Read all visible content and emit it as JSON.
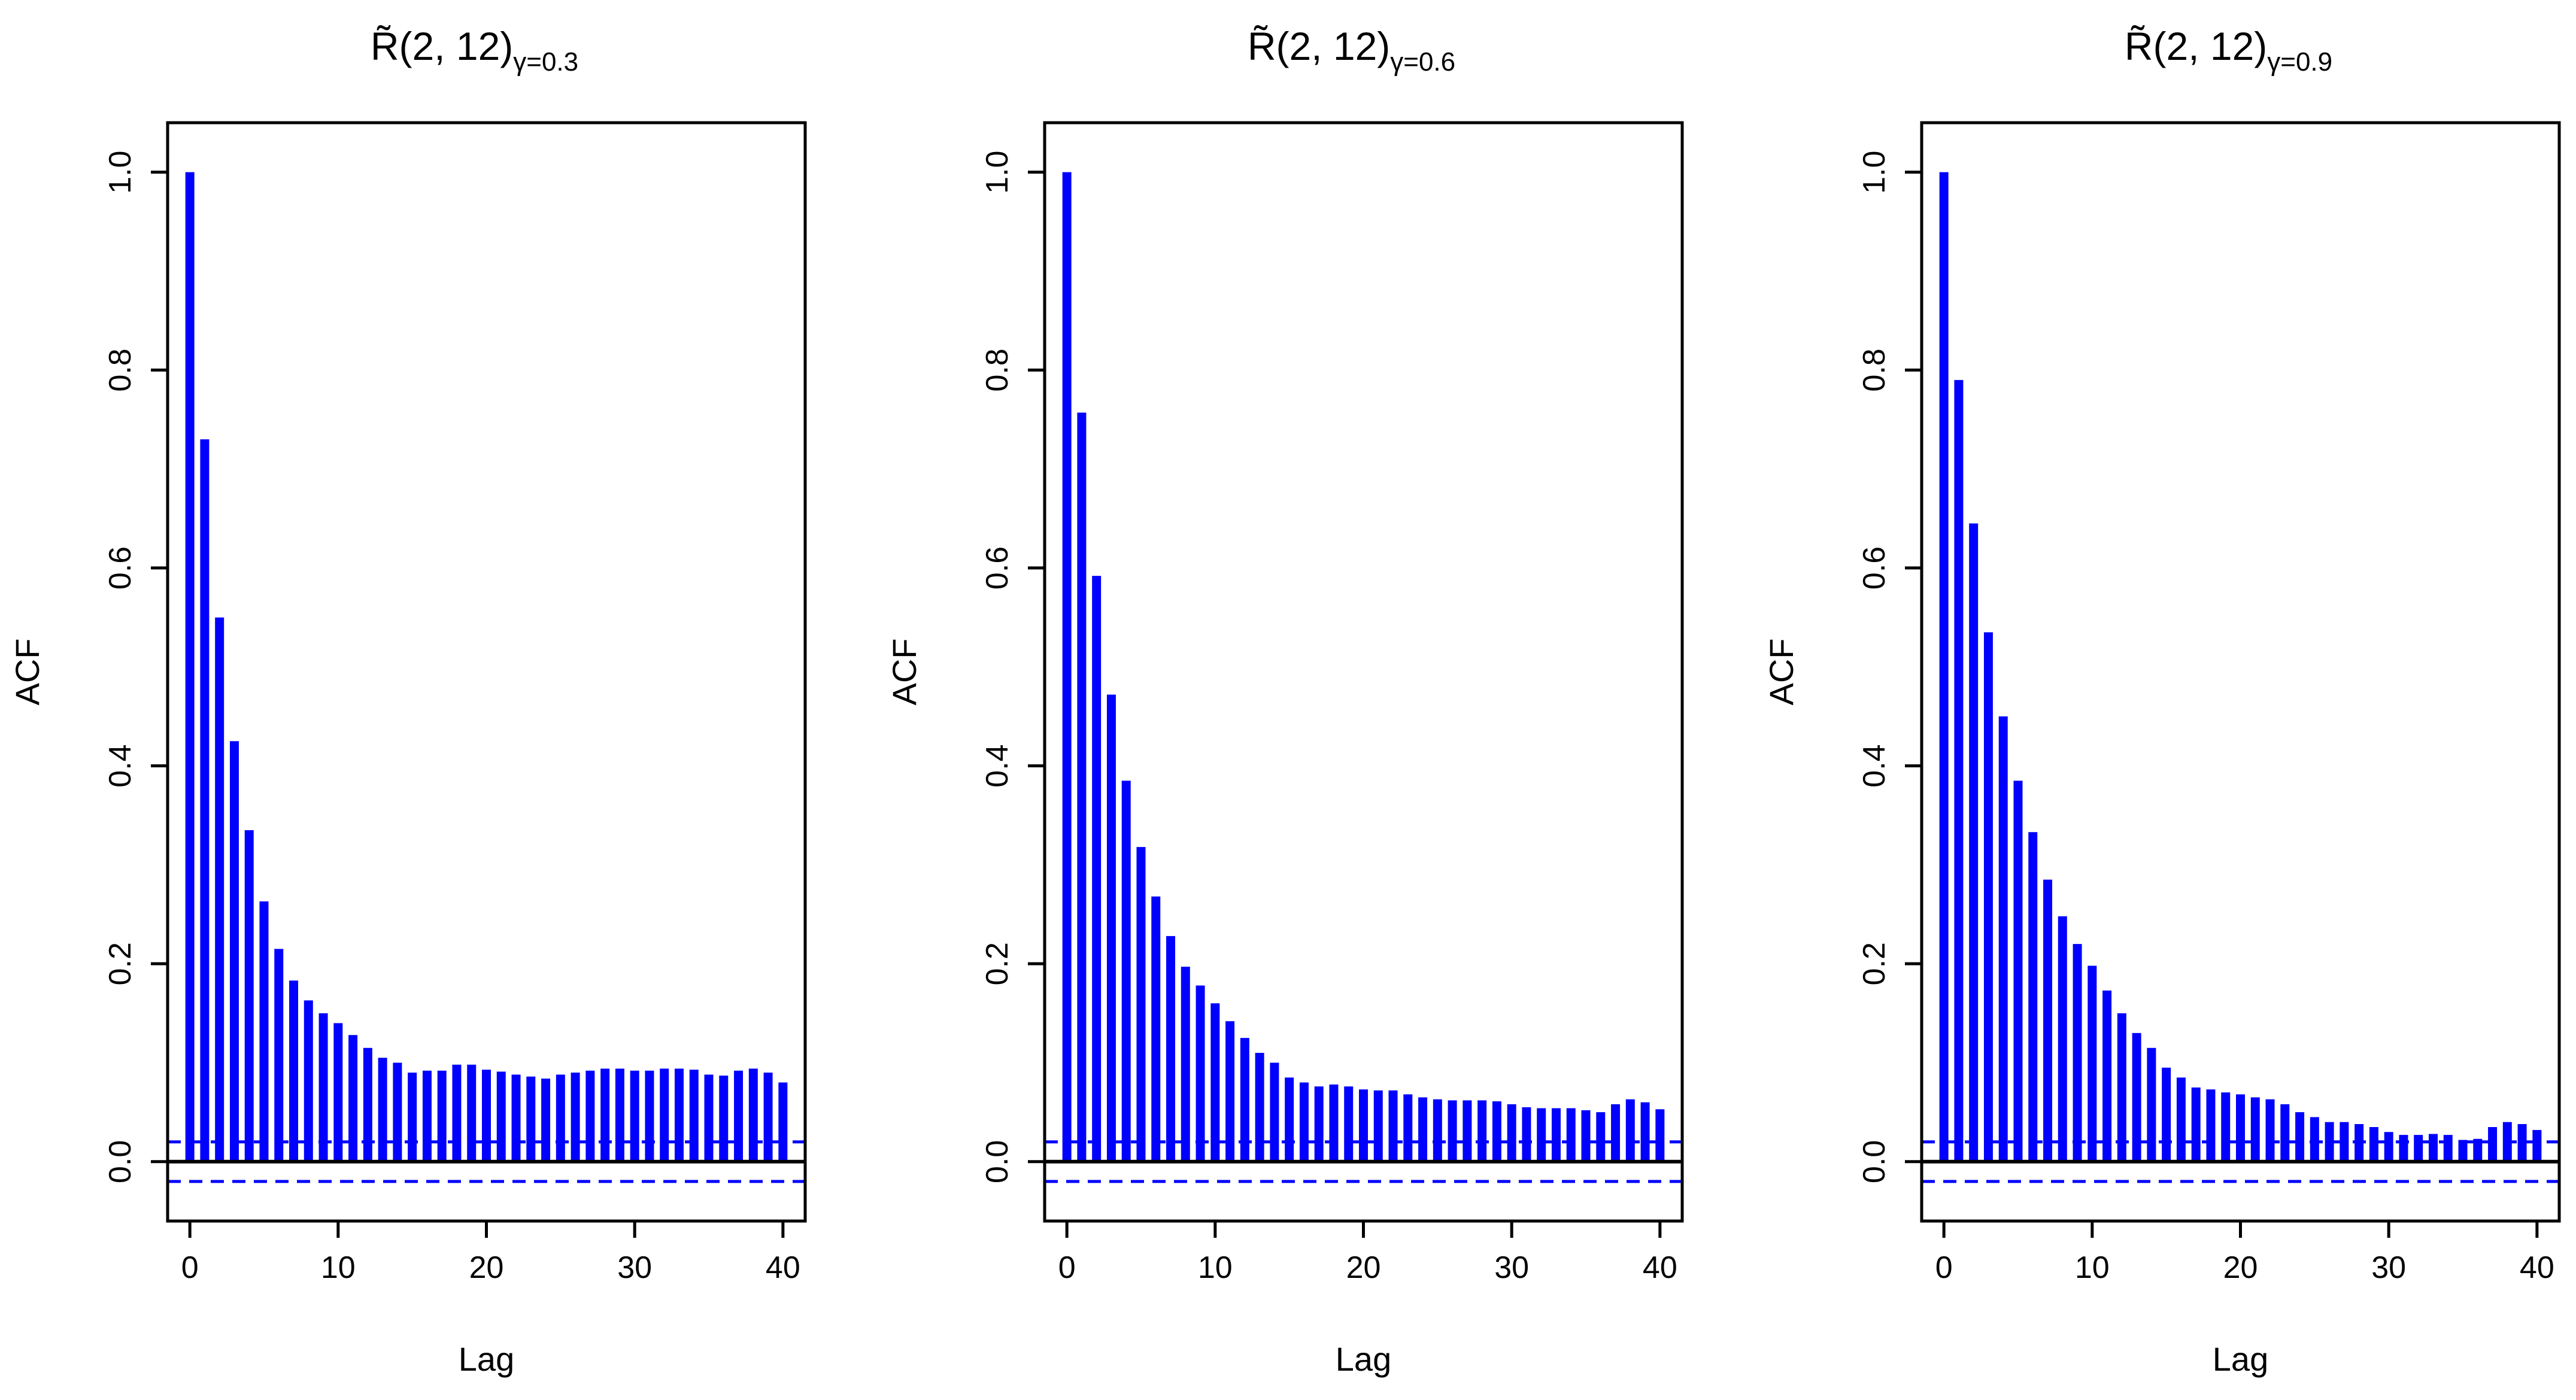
{
  "chart_data": [
    {
      "type": "bar",
      "title": {
        "base": "R̃(2, 12)",
        "subscript": "γ=0.3"
      },
      "xlabel": "Lag",
      "ylabel": "ACF",
      "xlim": [
        -1.5,
        41.5
      ],
      "ylim": [
        -0.06,
        1.05
      ],
      "x_ticks": [
        0,
        10,
        20,
        30,
        40
      ],
      "y_ticks": [
        0.0,
        0.2,
        0.4,
        0.6,
        0.8,
        1.0
      ],
      "x_tick_labels": [
        "0",
        "10",
        "20",
        "30",
        "40"
      ],
      "y_tick_labels": [
        "0.0",
        "0.2",
        "0.4",
        "0.6",
        "0.8",
        "1.0"
      ],
      "confidence_band": 0.02,
      "colors": {
        "bars": "#0000ff",
        "band": "#0000ff",
        "axes": "#000000"
      },
      "x": [
        0,
        1,
        2,
        3,
        4,
        5,
        6,
        7,
        8,
        9,
        10,
        11,
        12,
        13,
        14,
        15,
        16,
        17,
        18,
        19,
        20,
        21,
        22,
        23,
        24,
        25,
        26,
        27,
        28,
        29,
        30,
        31,
        32,
        33,
        34,
        35,
        36,
        37,
        38,
        39,
        40
      ],
      "values": [
        1.0,
        0.73,
        0.55,
        0.425,
        0.335,
        0.263,
        0.215,
        0.183,
        0.163,
        0.15,
        0.14,
        0.128,
        0.115,
        0.105,
        0.1,
        0.09,
        0.092,
        0.092,
        0.098,
        0.098,
        0.093,
        0.091,
        0.088,
        0.086,
        0.084,
        0.088,
        0.09,
        0.092,
        0.094,
        0.094,
        0.092,
        0.092,
        0.094,
        0.094,
        0.093,
        0.088,
        0.087,
        0.092,
        0.094,
        0.09,
        0.08
      ]
    },
    {
      "type": "bar",
      "title": {
        "base": "R̃(2, 12)",
        "subscript": "γ=0.6"
      },
      "xlabel": "Lag",
      "ylabel": "ACF",
      "xlim": [
        -1.5,
        41.5
      ],
      "ylim": [
        -0.06,
        1.05
      ],
      "x_ticks": [
        0,
        10,
        20,
        30,
        40
      ],
      "y_ticks": [
        0.0,
        0.2,
        0.4,
        0.6,
        0.8,
        1.0
      ],
      "x_tick_labels": [
        "0",
        "10",
        "20",
        "30",
        "40"
      ],
      "y_tick_labels": [
        "0.0",
        "0.2",
        "0.4",
        "0.6",
        "0.8",
        "1.0"
      ],
      "confidence_band": 0.02,
      "colors": {
        "bars": "#0000ff",
        "band": "#0000ff",
        "axes": "#000000"
      },
      "x": [
        0,
        1,
        2,
        3,
        4,
        5,
        6,
        7,
        8,
        9,
        10,
        11,
        12,
        13,
        14,
        15,
        16,
        17,
        18,
        19,
        20,
        21,
        22,
        23,
        24,
        25,
        26,
        27,
        28,
        29,
        30,
        31,
        32,
        33,
        34,
        35,
        36,
        37,
        38,
        39,
        40
      ],
      "values": [
        1.0,
        0.757,
        0.592,
        0.472,
        0.385,
        0.318,
        0.268,
        0.228,
        0.197,
        0.178,
        0.16,
        0.142,
        0.125,
        0.11,
        0.1,
        0.085,
        0.08,
        0.076,
        0.078,
        0.076,
        0.073,
        0.072,
        0.072,
        0.068,
        0.065,
        0.063,
        0.062,
        0.062,
        0.062,
        0.061,
        0.058,
        0.055,
        0.054,
        0.054,
        0.054,
        0.052,
        0.05,
        0.058,
        0.063,
        0.06,
        0.053
      ]
    },
    {
      "type": "bar",
      "title": {
        "base": "R̃(2, 12)",
        "subscript": "γ=0.9"
      },
      "xlabel": "Lag",
      "ylabel": "ACF",
      "xlim": [
        -1.5,
        41.5
      ],
      "ylim": [
        -0.06,
        1.05
      ],
      "x_ticks": [
        0,
        10,
        20,
        30,
        40
      ],
      "y_ticks": [
        0.0,
        0.2,
        0.4,
        0.6,
        0.8,
        1.0
      ],
      "x_tick_labels": [
        "0",
        "10",
        "20",
        "30",
        "40"
      ],
      "y_tick_labels": [
        "0.0",
        "0.2",
        "0.4",
        "0.6",
        "0.8",
        "1.0"
      ],
      "confidence_band": 0.02,
      "colors": {
        "bars": "#0000ff",
        "band": "#0000ff",
        "axes": "#000000"
      },
      "x": [
        0,
        1,
        2,
        3,
        4,
        5,
        6,
        7,
        8,
        9,
        10,
        11,
        12,
        13,
        14,
        15,
        16,
        17,
        18,
        19,
        20,
        21,
        22,
        23,
        24,
        25,
        26,
        27,
        28,
        29,
        30,
        31,
        32,
        33,
        34,
        35,
        36,
        37,
        38,
        39,
        40
      ],
      "values": [
        1.0,
        0.79,
        0.645,
        0.535,
        0.45,
        0.385,
        0.333,
        0.285,
        0.248,
        0.22,
        0.198,
        0.173,
        0.15,
        0.13,
        0.115,
        0.095,
        0.085,
        0.075,
        0.073,
        0.07,
        0.068,
        0.065,
        0.063,
        0.058,
        0.05,
        0.045,
        0.04,
        0.04,
        0.038,
        0.035,
        0.03,
        0.027,
        0.027,
        0.028,
        0.027,
        0.022,
        0.023,
        0.035,
        0.04,
        0.038,
        0.032
      ]
    }
  ]
}
